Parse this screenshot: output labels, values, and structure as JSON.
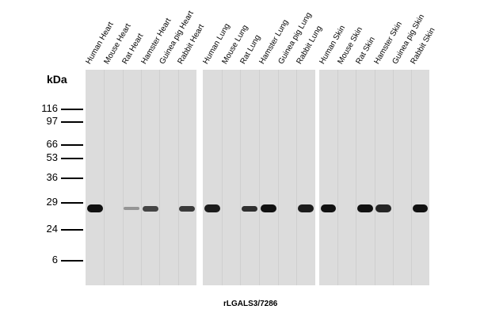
{
  "lanes": [
    "Human Heart",
    "Mouse Heart",
    "Rat Heart",
    "Hamster Heart",
    "Guinea pig Heart",
    "Rabbit Heart",
    "Human Lung",
    "Mouse Lung",
    "Rat Lung",
    "Hamster Lung",
    "Guinea pig Lung",
    "Rabbit Lung",
    "Human Skin",
    "Mouse Skin",
    "Rat Skin",
    "Hamster Skin",
    "Guinea pig Skin",
    "Rabbit Skin"
  ],
  "mw_unit": "kDa",
  "mw_markers": [
    "116",
    "97",
    "66",
    "53",
    "36",
    "29",
    "24",
    "6"
  ],
  "antibody": "rLGALS3/7286",
  "band_intensity": [
    1.0,
    0,
    0.35,
    0.75,
    0,
    0.8,
    0.95,
    0,
    0.85,
    1.0,
    0,
    0.95,
    1.0,
    0,
    1.0,
    0.9,
    0,
    1.0
  ]
}
